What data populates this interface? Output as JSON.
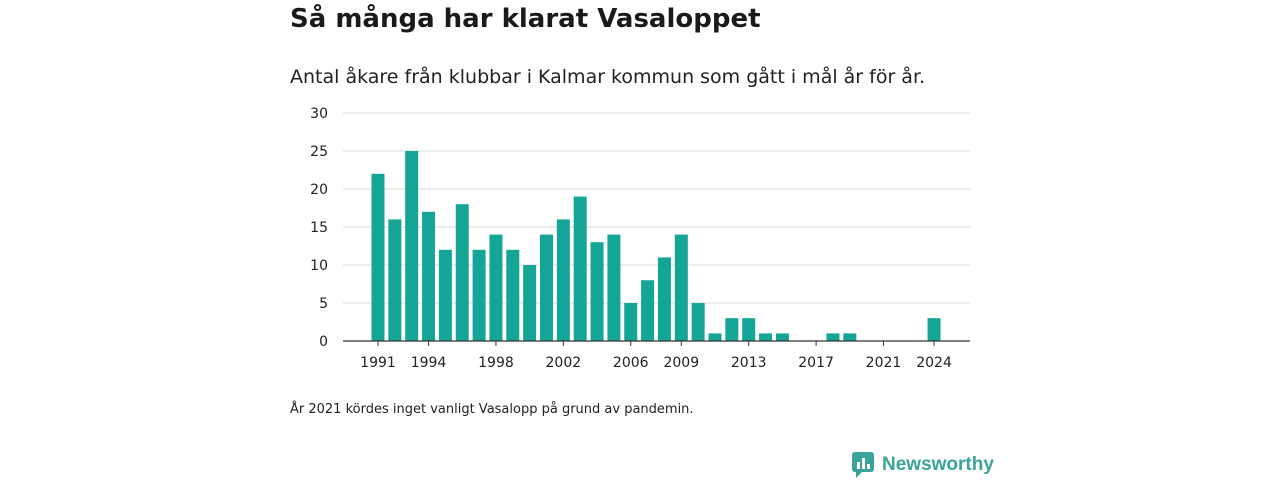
{
  "title": "Så många har klarat Vasaloppet",
  "subtitle": "Antal åkare från klubbar i Kalmar kommun som gått i mål år för år.",
  "note": "År 2021 kördes inget vanligt Vasalopp på grund av pandemin.",
  "brand": {
    "name": "Newsworthy",
    "icon": "newsworthy-logo-icon",
    "color": "#3aa39a"
  },
  "chart_data": {
    "type": "bar",
    "bar_color": "#14a597",
    "grid": true,
    "ylim": [
      0,
      30
    ],
    "yticks": [
      0,
      5,
      10,
      15,
      20,
      25,
      30
    ],
    "xticks": [
      "1991",
      "1994",
      "1998",
      "2002",
      "2006",
      "2009",
      "2013",
      "2017",
      "2021",
      "2024"
    ],
    "categories": [
      "1991",
      "1992",
      "1993",
      "1994",
      "1995",
      "1996",
      "1997",
      "1998",
      "1999",
      "2000",
      "2001",
      "2002",
      "2003",
      "2004",
      "2005",
      "2006",
      "2007",
      "2008",
      "2009",
      "2010",
      "2011",
      "2012",
      "2013",
      "2014",
      "2015",
      "2016",
      "2017",
      "2018",
      "2019",
      "2020",
      "2021",
      "2022",
      "2023",
      "2024"
    ],
    "values": [
      22,
      16,
      25,
      17,
      12,
      18,
      12,
      14,
      12,
      10,
      14,
      16,
      19,
      13,
      14,
      5,
      8,
      11,
      14,
      5,
      1,
      3,
      3,
      1,
      1,
      0,
      0,
      1,
      1,
      0,
      0,
      0,
      0,
      3
    ]
  }
}
